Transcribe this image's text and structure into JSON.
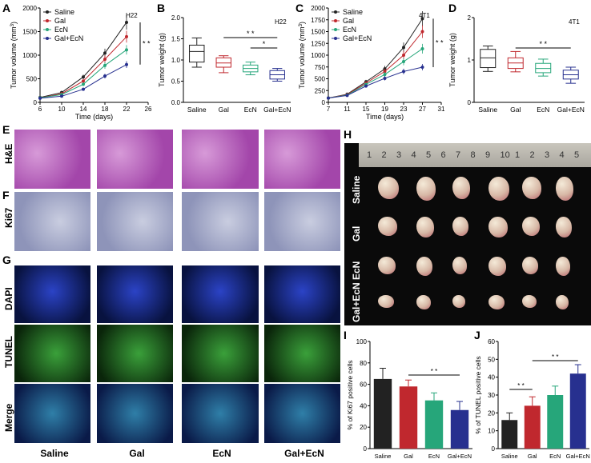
{
  "panels": {
    "A": "A",
    "B": "B",
    "C": "C",
    "D": "D",
    "E": "E",
    "F": "F",
    "G": "G",
    "H": "H",
    "I": "I",
    "J": "J"
  },
  "micro_rows": {
    "he": "H&E",
    "ki67": "Ki67",
    "dapi": "DAPI",
    "tunel": "TUNEL",
    "merge": "Merge"
  },
  "groups": [
    "Saline",
    "Gal",
    "EcN",
    "Gal+EcN"
  ],
  "photo_rows": [
    "Saline",
    "Gal",
    "EcN",
    "Gal+EcN"
  ],
  "ruler_numbers": [
    "1",
    "2",
    "3",
    "4",
    "5",
    "6",
    "7",
    "8",
    "9",
    "10",
    "1",
    "2",
    "3",
    "4",
    "5"
  ],
  "colors": {
    "saline": "#222222",
    "gal": "#c0282e",
    "ecn": "#26a67a",
    "galecn": "#27308f",
    "he": "#b55ab8",
    "ki67": "#9ea4c6",
    "dapi": "#1a2a8a",
    "tunel": "#3a9a3a"
  },
  "sig": {
    "two": "* *",
    "one": "*"
  },
  "chart_data": [
    {
      "id": "A",
      "type": "line",
      "title": "H22",
      "xlabel": "Time (days)",
      "ylabel": "Tumor volume (mm",
      "ylabel_sup": "3",
      "ylabel_end": ")",
      "x": [
        6,
        10,
        14,
        18,
        22
      ],
      "xticks": [
        "6",
        "10",
        "14",
        "18",
        "22",
        "26"
      ],
      "xlim": [
        6,
        26
      ],
      "yticks": [
        "0",
        "500",
        "1000",
        "1500",
        "2000"
      ],
      "ylim": [
        0,
        2300
      ],
      "legend": [
        "Saline",
        "Gal",
        "EcN",
        "Gal+EcN"
      ],
      "series": [
        {
          "name": "Saline",
          "values": [
            120,
            240,
            620,
            1200,
            1950
          ]
        },
        {
          "name": "Gal",
          "values": [
            110,
            210,
            520,
            1050,
            1600
          ]
        },
        {
          "name": "EcN",
          "values": [
            110,
            190,
            440,
            900,
            1280
          ]
        },
        {
          "name": "Gal+EcN",
          "values": [
            100,
            150,
            320,
            640,
            920
          ]
        }
      ]
    },
    {
      "id": "B",
      "type": "box",
      "title": "H22",
      "ylabel": "Tumor weight (g)",
      "ylim": [
        0,
        2.0
      ],
      "yticks": [
        "0.0",
        "0.5",
        "1.0",
        "1.5",
        "2.0"
      ],
      "categories": [
        "Saline",
        "Gal",
        "EcN",
        "Gal+EcN"
      ],
      "boxes": [
        {
          "min": 0.83,
          "q1": 0.95,
          "med": 1.2,
          "q3": 1.35,
          "max": 1.52
        },
        {
          "min": 0.7,
          "q1": 0.83,
          "med": 0.93,
          "q3": 1.05,
          "max": 1.1
        },
        {
          "min": 0.65,
          "q1": 0.72,
          "med": 0.8,
          "q3": 0.88,
          "max": 0.95
        },
        {
          "min": 0.5,
          "q1": 0.55,
          "med": 0.65,
          "q3": 0.75,
          "max": 0.8
        }
      ]
    },
    {
      "id": "C",
      "type": "line",
      "title": "4T1",
      "xlabel": "Time (days)",
      "ylabel": "Tumor volume (mm",
      "ylabel_sup": "3",
      "ylabel_end": ")",
      "x": [
        7,
        11,
        15,
        19,
        23,
        27
      ],
      "xticks": [
        "7",
        "11",
        "15",
        "19",
        "23",
        "27",
        "31"
      ],
      "xlim": [
        7,
        31
      ],
      "yticks": [
        "0",
        "250",
        "500",
        "750",
        "1000",
        "1250",
        "1500",
        "1750",
        "2000"
      ],
      "ylim": [
        0,
        2200
      ],
      "legend": [
        "Saline",
        "Gal",
        "EcN",
        "Gal+EcN"
      ],
      "series": [
        {
          "name": "Saline",
          "values": [
            100,
            190,
            480,
            780,
            1280,
            1950
          ]
        },
        {
          "name": "Gal",
          "values": [
            100,
            180,
            450,
            720,
            1100,
            1650
          ]
        },
        {
          "name": "EcN",
          "values": [
            100,
            170,
            420,
            650,
            950,
            1250
          ]
        },
        {
          "name": "Gal+EcN",
          "values": [
            100,
            160,
            380,
            560,
            720,
            820
          ]
        }
      ]
    },
    {
      "id": "D",
      "type": "box",
      "title": "4T1",
      "ylabel": "Tumor weight (g)",
      "ylim": [
        0,
        2
      ],
      "yticks": [
        "0",
        "1",
        "2"
      ],
      "categories": [
        "Saline",
        "Gal",
        "EcN",
        "Gal+EcN"
      ],
      "boxes": [
        {
          "min": 0.73,
          "q1": 0.82,
          "med": 1.05,
          "q3": 1.25,
          "max": 1.33
        },
        {
          "min": 0.72,
          "q1": 0.8,
          "med": 0.93,
          "q3": 1.05,
          "max": 1.2
        },
        {
          "min": 0.62,
          "q1": 0.7,
          "med": 0.8,
          "q3": 0.92,
          "max": 1.02
        },
        {
          "min": 0.45,
          "q1": 0.55,
          "med": 0.65,
          "q3": 0.76,
          "max": 0.83
        }
      ]
    },
    {
      "id": "I",
      "type": "bar",
      "ylabel": "% of Ki67 positive cells",
      "ylim": [
        0,
        100
      ],
      "yticks": [
        "0",
        "20",
        "40",
        "60",
        "80",
        "100"
      ],
      "categories": [
        "Saline",
        "Gal",
        "EcN",
        "Gal+EcN"
      ],
      "values": [
        65,
        58,
        45,
        36
      ],
      "errors": [
        10,
        6,
        7,
        8
      ]
    },
    {
      "id": "J",
      "type": "bar",
      "ylabel": "% of TUNEL positive cells",
      "ylim": [
        0,
        60
      ],
      "yticks": [
        "0",
        "10",
        "20",
        "30",
        "40",
        "50",
        "60"
      ],
      "categories": [
        "Saline",
        "Gal",
        "EcN",
        "Gal+EcN"
      ],
      "values": [
        16,
        24,
        30,
        42
      ],
      "errors": [
        4,
        5,
        5,
        5
      ]
    }
  ]
}
